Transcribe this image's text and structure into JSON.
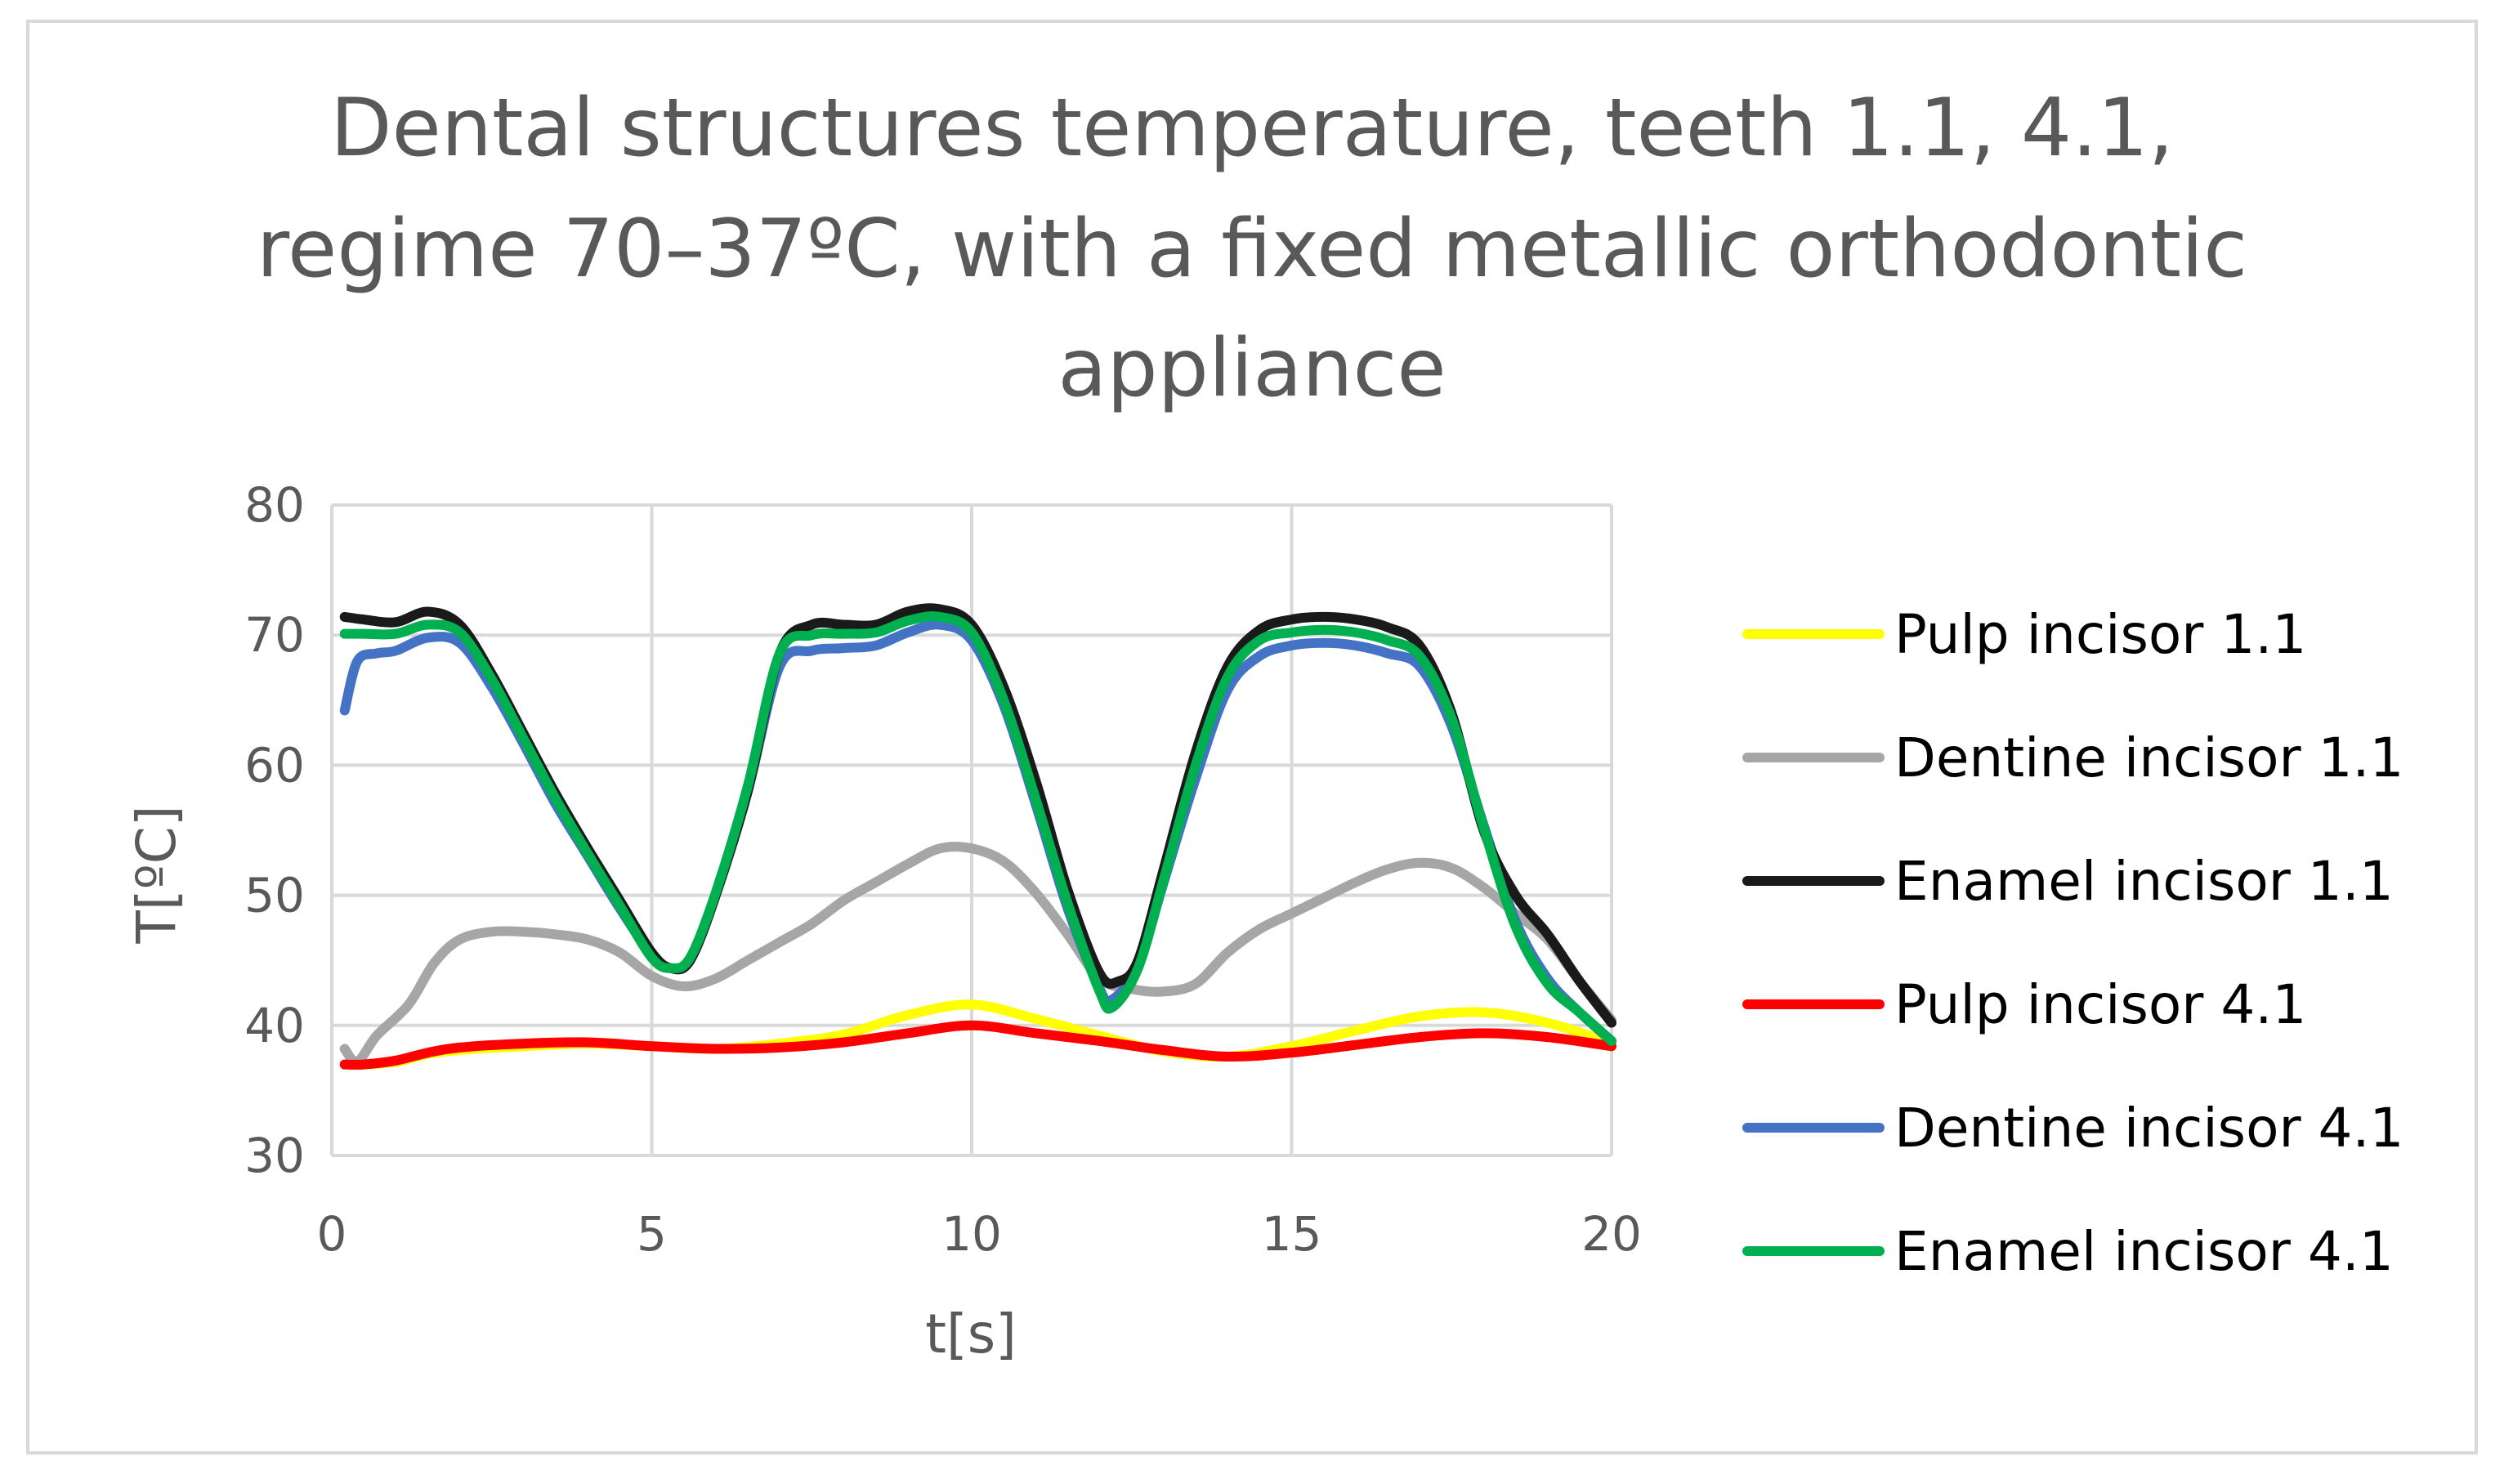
{
  "chart_data": {
    "type": "line",
    "title_lines": [
      "Dental structures temperature, teeth 1.1, 4.1,",
      "regime 70–37ºC, with a fixed metallic orthodontic",
      "appliance"
    ],
    "xlabel": "t[s]",
    "ylabel": "T[ºC]",
    "xlim": [
      0,
      20
    ],
    "ylim": [
      30,
      80
    ],
    "xticks": [
      0,
      5,
      10,
      15,
      20
    ],
    "yticks": [
      30,
      40,
      50,
      60,
      70,
      80
    ],
    "grid": true,
    "legend_position": "right",
    "series": [
      {
        "name": "Pulp incisor 1.1",
        "color": "#FFFF00",
        "points": [
          [
            0.2,
            37
          ],
          [
            0.5,
            37
          ],
          [
            1,
            37.2
          ],
          [
            1.5,
            37.8
          ],
          [
            2,
            38.1
          ],
          [
            3,
            38.4
          ],
          [
            4,
            38.6
          ],
          [
            5,
            38.4
          ],
          [
            6,
            38.2
          ],
          [
            7,
            38.6
          ],
          [
            8,
            39.3
          ],
          [
            9,
            40.8
          ],
          [
            10,
            41.6
          ],
          [
            11,
            40.5
          ],
          [
            12,
            39.2
          ],
          [
            13,
            38
          ],
          [
            14,
            37.6
          ],
          [
            15,
            38.4
          ],
          [
            16,
            39.6
          ],
          [
            17,
            40.7
          ],
          [
            18,
            41
          ],
          [
            19,
            40.2
          ],
          [
            20,
            38.6
          ]
        ]
      },
      {
        "name": "Dentine incisor 1.1",
        "color": "#A6A6A6",
        "points": [
          [
            0.2,
            38.2
          ],
          [
            0.4,
            37.2
          ],
          [
            0.7,
            39.2
          ],
          [
            1.2,
            41.6
          ],
          [
            1.6,
            44.8
          ],
          [
            2,
            46.6
          ],
          [
            2.5,
            47.2
          ],
          [
            3,
            47.2
          ],
          [
            3.5,
            47
          ],
          [
            4,
            46.6
          ],
          [
            4.5,
            45.6
          ],
          [
            5,
            43.8
          ],
          [
            5.5,
            43
          ],
          [
            6,
            43.6
          ],
          [
            6.5,
            45
          ],
          [
            7,
            46.4
          ],
          [
            7.5,
            47.8
          ],
          [
            8,
            49.6
          ],
          [
            8.5,
            51
          ],
          [
            9,
            52.4
          ],
          [
            9.5,
            53.6
          ],
          [
            10,
            53.6
          ],
          [
            10.5,
            52.6
          ],
          [
            11,
            50.2
          ],
          [
            11.5,
            47
          ],
          [
            12,
            43.6
          ],
          [
            12.5,
            42.8
          ],
          [
            13,
            42.6
          ],
          [
            13.5,
            43.2
          ],
          [
            14,
            45.6
          ],
          [
            14.5,
            47.4
          ],
          [
            15,
            48.6
          ],
          [
            15.5,
            49.8
          ],
          [
            16,
            51
          ],
          [
            16.5,
            52
          ],
          [
            17,
            52.5
          ],
          [
            17.5,
            52.1
          ],
          [
            18,
            50.6
          ],
          [
            18.5,
            48.6
          ],
          [
            19,
            46.6
          ],
          [
            19.5,
            43.4
          ],
          [
            20,
            40.4
          ]
        ]
      },
      {
        "name": "Enamel incisor 1.1",
        "color": "#1A1A1A",
        "points": [
          [
            0.2,
            71.4
          ],
          [
            0.5,
            71.2
          ],
          [
            1,
            71
          ],
          [
            1.5,
            71.8
          ],
          [
            2,
            70.8
          ],
          [
            2.5,
            67
          ],
          [
            3,
            62.4
          ],
          [
            3.5,
            57.8
          ],
          [
            4,
            53.6
          ],
          [
            4.5,
            49.6
          ],
          [
            5,
            45.6
          ],
          [
            5.3,
            44.4
          ],
          [
            5.6,
            45
          ],
          [
            6,
            50
          ],
          [
            6.5,
            58
          ],
          [
            7,
            68.6
          ],
          [
            7.5,
            70.8
          ],
          [
            8,
            70.8
          ],
          [
            8.5,
            70.8
          ],
          [
            9,
            71.8
          ],
          [
            9.5,
            72
          ],
          [
            10,
            70.8
          ],
          [
            10.5,
            66
          ],
          [
            11,
            58.8
          ],
          [
            11.5,
            50.4
          ],
          [
            12,
            44
          ],
          [
            12.3,
            43.4
          ],
          [
            12.6,
            45
          ],
          [
            13,
            52
          ],
          [
            13.5,
            61
          ],
          [
            14,
            67.6
          ],
          [
            14.5,
            70.4
          ],
          [
            15,
            71.2
          ],
          [
            15.5,
            71.4
          ],
          [
            16,
            71.2
          ],
          [
            16.5,
            70.6
          ],
          [
            17,
            69.2
          ],
          [
            17.5,
            64
          ],
          [
            18,
            55
          ],
          [
            18.5,
            50
          ],
          [
            19,
            47
          ],
          [
            19.5,
            43.4
          ],
          [
            20,
            40.2
          ]
        ]
      },
      {
        "name": "Pulp incisor 4.1",
        "color": "#FF0000",
        "points": [
          [
            0.2,
            37
          ],
          [
            0.5,
            37
          ],
          [
            1,
            37.3
          ],
          [
            1.5,
            37.9
          ],
          [
            2,
            38.3
          ],
          [
            3,
            38.6
          ],
          [
            4,
            38.7
          ],
          [
            5,
            38.4
          ],
          [
            6,
            38.2
          ],
          [
            7,
            38.3
          ],
          [
            8,
            38.7
          ],
          [
            9,
            39.4
          ],
          [
            10,
            40
          ],
          [
            11,
            39.4
          ],
          [
            12,
            38.8
          ],
          [
            13,
            38.1
          ],
          [
            14,
            37.6
          ],
          [
            15,
            37.9
          ],
          [
            16,
            38.5
          ],
          [
            17,
            39.1
          ],
          [
            18,
            39.4
          ],
          [
            19,
            39.1
          ],
          [
            20,
            38.4
          ]
        ]
      },
      {
        "name": "Dentine incisor 4.1",
        "color": "#4472C4",
        "points": [
          [
            0.2,
            64.2
          ],
          [
            0.4,
            68
          ],
          [
            0.7,
            68.6
          ],
          [
            1,
            68.8
          ],
          [
            1.5,
            69.8
          ],
          [
            2,
            69.4
          ],
          [
            2.5,
            66
          ],
          [
            3,
            61.6
          ],
          [
            3.5,
            57
          ],
          [
            4,
            53
          ],
          [
            4.5,
            49
          ],
          [
            5,
            45.4
          ],
          [
            5.3,
            44.4
          ],
          [
            5.6,
            45
          ],
          [
            6,
            50
          ],
          [
            6.5,
            58
          ],
          [
            7,
            67.6
          ],
          [
            7.5,
            68.8
          ],
          [
            8,
            69
          ],
          [
            8.5,
            69.2
          ],
          [
            9,
            70.2
          ],
          [
            9.5,
            70.8
          ],
          [
            10,
            69.6
          ],
          [
            10.5,
            64.6
          ],
          [
            11,
            57
          ],
          [
            11.5,
            49
          ],
          [
            12,
            42.8
          ],
          [
            12.2,
            42
          ],
          [
            12.6,
            44.6
          ],
          [
            13,
            51
          ],
          [
            13.5,
            59
          ],
          [
            14,
            65.8
          ],
          [
            14.5,
            68.4
          ],
          [
            15,
            69.2
          ],
          [
            15.5,
            69.4
          ],
          [
            16,
            69.2
          ],
          [
            16.5,
            68.6
          ],
          [
            17,
            67.6
          ],
          [
            17.5,
            63
          ],
          [
            18,
            55.4
          ],
          [
            18.5,
            48
          ],
          [
            19,
            43.6
          ],
          [
            19.5,
            41
          ],
          [
            20,
            38.8
          ]
        ]
      },
      {
        "name": "Enamel incisor 4.1",
        "color": "#00B050",
        "points": [
          [
            0.2,
            70.1
          ],
          [
            0.5,
            70.1
          ],
          [
            1,
            70.1
          ],
          [
            1.5,
            70.8
          ],
          [
            2,
            70.2
          ],
          [
            2.5,
            66.6
          ],
          [
            3,
            62
          ],
          [
            3.5,
            57.4
          ],
          [
            4,
            53.2
          ],
          [
            4.5,
            49.2
          ],
          [
            5,
            45.2
          ],
          [
            5.3,
            44.4
          ],
          [
            5.6,
            45.2
          ],
          [
            6,
            50.2
          ],
          [
            6.5,
            58.4
          ],
          [
            7,
            68.6
          ],
          [
            7.5,
            70
          ],
          [
            8,
            70.1
          ],
          [
            8.5,
            70.2
          ],
          [
            9,
            71.1
          ],
          [
            9.5,
            71.4
          ],
          [
            10,
            70.2
          ],
          [
            10.5,
            65
          ],
          [
            11,
            57.4
          ],
          [
            11.5,
            49.4
          ],
          [
            12,
            42.6
          ],
          [
            12.2,
            41.4
          ],
          [
            12.6,
            44.4
          ],
          [
            13,
            51.2
          ],
          [
            13.5,
            60
          ],
          [
            14,
            66.8
          ],
          [
            14.5,
            69.6
          ],
          [
            15,
            70.2
          ],
          [
            15.5,
            70.4
          ],
          [
            16,
            70.2
          ],
          [
            16.5,
            69.6
          ],
          [
            17,
            68.4
          ],
          [
            17.5,
            63.6
          ],
          [
            18,
            55.2
          ],
          [
            18.5,
            47.6
          ],
          [
            19,
            43.2
          ],
          [
            19.5,
            41
          ],
          [
            20,
            38.8
          ]
        ]
      }
    ]
  }
}
